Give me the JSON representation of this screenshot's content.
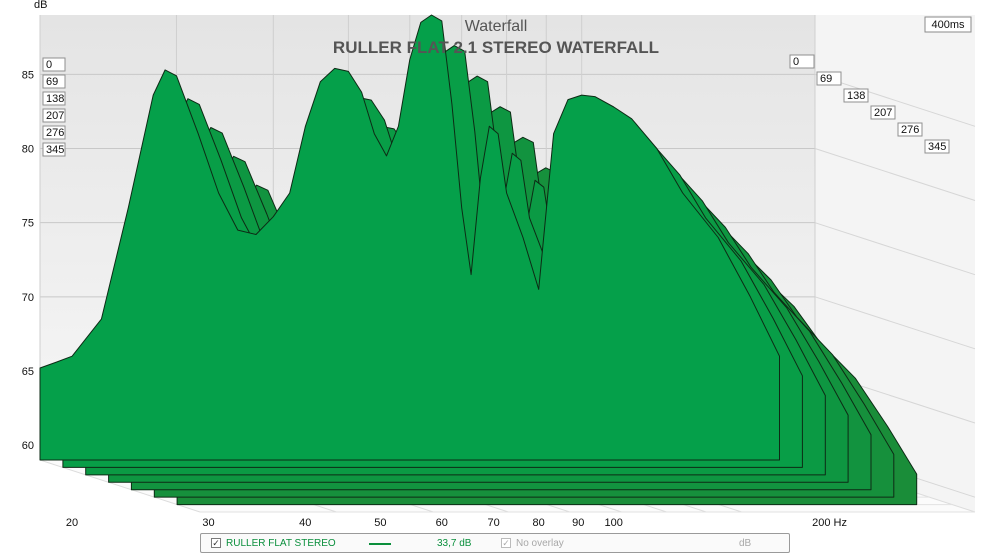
{
  "chart_data": {
    "type": "area",
    "title": "Waterfall",
    "subtitle": "RULLER FLAT 2.1 STEREO WATERFALL",
    "ylabel": "dB",
    "ylim": [
      59,
      89
    ],
    "yticks": [
      60,
      65,
      70,
      75,
      80,
      85
    ],
    "xscale": "log",
    "xlim": [
      20,
      200
    ],
    "xticks": [
      {
        "v": 20,
        "label": "20"
      },
      {
        "v": 30,
        "label": "30"
      },
      {
        "v": 40,
        "label": "40"
      },
      {
        "v": 50,
        "label": "50"
      },
      {
        "v": 60,
        "label": "60"
      },
      {
        "v": 70,
        "label": "70"
      },
      {
        "v": 80,
        "label": "80"
      },
      {
        "v": 90,
        "label": "90"
      },
      {
        "v": 100,
        "label": "100"
      },
      {
        "v": 200,
        "label": "200 Hz"
      }
    ],
    "time_unit_label": "400ms",
    "time_slices_left": [
      "0",
      "69",
      "138",
      "207",
      "276",
      "345"
    ],
    "time_slices_right": [
      "0",
      "69",
      "138",
      "207",
      "276",
      "345"
    ],
    "grid": true,
    "color": "#0aa043",
    "series": [
      {
        "name": "RULLER FLAT STEREO",
        "time_ms": 0,
        "points": [
          [
            20,
            65.2
          ],
          [
            21,
            65.6
          ],
          [
            22,
            66.0
          ],
          [
            24,
            68.5
          ],
          [
            26,
            76.0
          ],
          [
            28,
            83.6
          ],
          [
            29,
            85.3
          ],
          [
            30,
            84.9
          ],
          [
            32,
            81.0
          ],
          [
            34,
            77.0
          ],
          [
            36,
            74.5
          ],
          [
            38,
            74.2
          ],
          [
            40,
            75.4
          ],
          [
            42,
            77.0
          ],
          [
            44,
            81.5
          ],
          [
            46,
            84.5
          ],
          [
            48,
            85.4
          ],
          [
            50,
            85.2
          ],
          [
            52,
            83.8
          ],
          [
            54,
            81.0
          ],
          [
            56,
            79.5
          ],
          [
            58,
            81.5
          ],
          [
            60,
            86.0
          ],
          [
            62,
            88.5
          ],
          [
            64,
            89.0
          ],
          [
            66,
            88.6
          ],
          [
            68,
            83.0
          ],
          [
            70,
            76.0
          ],
          [
            72,
            71.5
          ],
          [
            74,
            78.0
          ],
          [
            76,
            81.5
          ],
          [
            78,
            81.0
          ],
          [
            80,
            77.0
          ],
          [
            84,
            74.0
          ],
          [
            88,
            70.5
          ],
          [
            92,
            81.0
          ],
          [
            96,
            83.3
          ],
          [
            100,
            83.6
          ],
          [
            104,
            83.5
          ],
          [
            110,
            82.8
          ],
          [
            116,
            82.0
          ],
          [
            125,
            80.0
          ],
          [
            135,
            77.0
          ],
          [
            150,
            74.0
          ],
          [
            165,
            70.0
          ],
          [
            180,
            66.0
          ]
        ]
      }
    ],
    "legend": {
      "entries": [
        {
          "label": "RULLER FLAT STEREO",
          "value": "33,7 dB",
          "checked": true
        },
        {
          "label": "No overlay",
          "value": "dB",
          "checked": true
        }
      ]
    }
  }
}
